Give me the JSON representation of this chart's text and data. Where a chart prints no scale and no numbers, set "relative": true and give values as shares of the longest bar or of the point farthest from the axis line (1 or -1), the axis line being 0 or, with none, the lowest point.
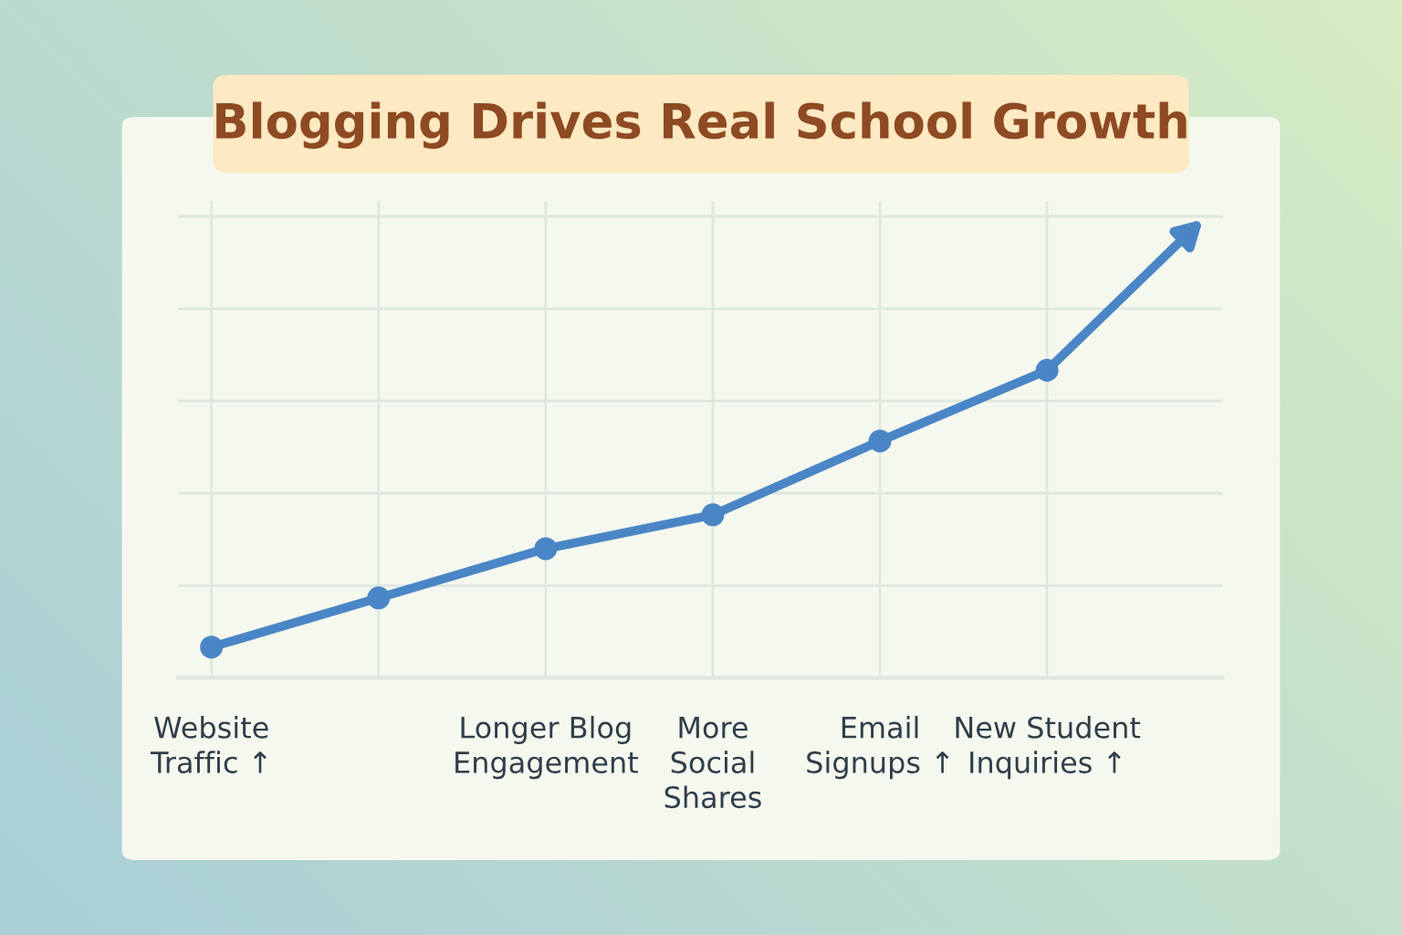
{
  "chart_data": {
    "type": "line",
    "title": "Blogging Drives Real School Growth",
    "categories": [
      "Website\nTraffic ↑",
      null,
      "Longer Blog\nEngagement",
      "More\nSocial\nShares",
      "Email\nSignups ↑",
      "New Student\nInquiries ↑"
    ],
    "series": [
      {
        "color": "#4a86c6",
        "values": [
          0.1,
          0.26,
          0.42,
          0.53,
          0.77,
          1.0
        ]
      }
    ],
    "relative": true,
    "grid": true,
    "marker": "circle",
    "line_style": "solid",
    "legend": false
  }
}
